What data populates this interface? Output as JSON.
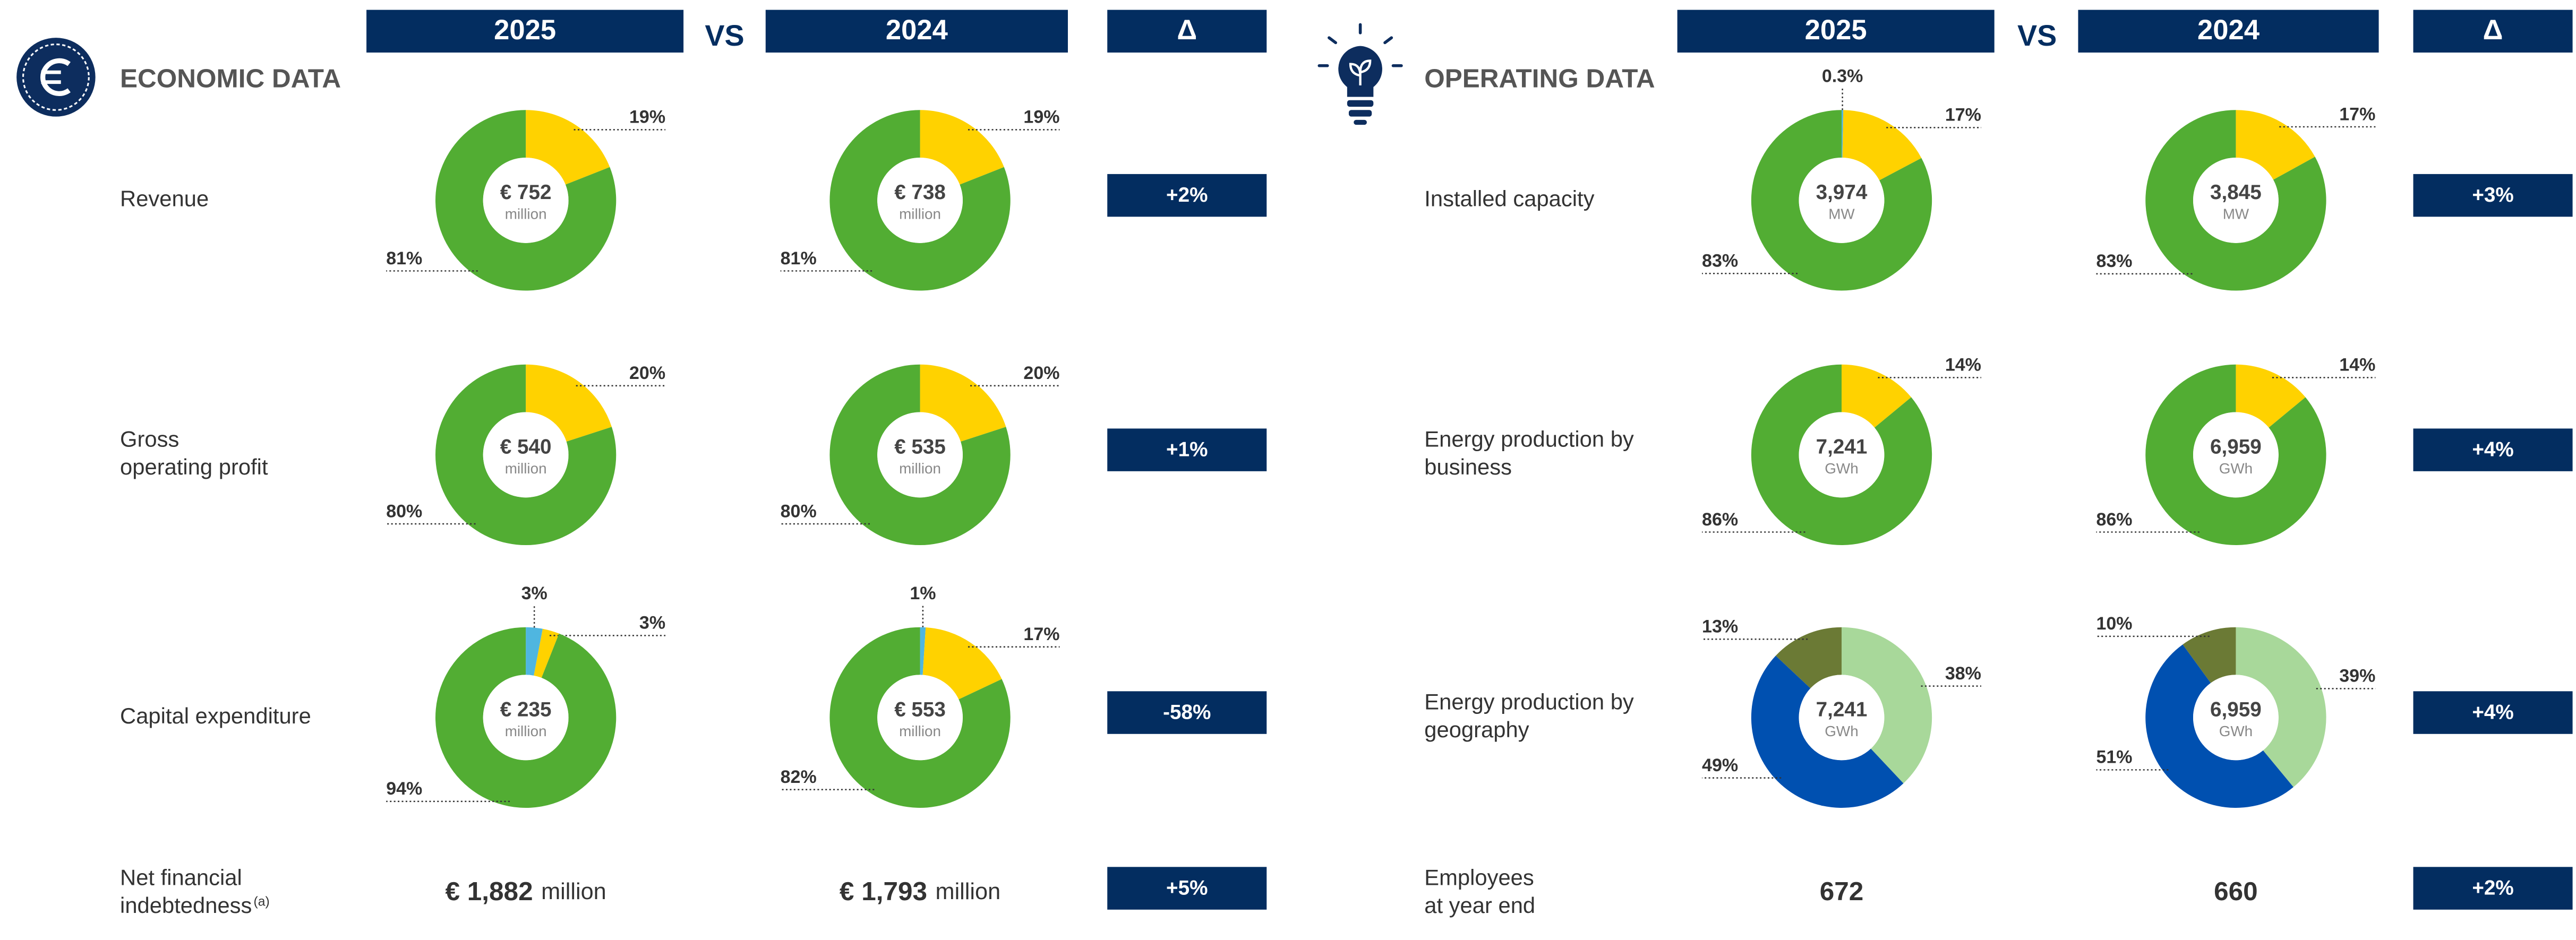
{
  "sections": [
    {
      "title": "ECONOMIC DATA",
      "header": {
        "current": "2025",
        "vs": "VS",
        "previous": "2024",
        "delta": "Δ"
      },
      "rows": [
        {
          "label": [
            "Revenue"
          ],
          "charts": [
            {
              "type": "donut",
              "values": [
                19,
                81
              ],
              "value_labels": [
                "19%",
                "81%"
              ],
              "colors": [
                "#ffd200",
                "#52ad33"
              ],
              "center_value": "€ 752",
              "center_unit": "million"
            },
            {
              "type": "donut",
              "values": [
                19,
                81
              ],
              "value_labels": [
                "19%",
                "81%"
              ],
              "colors": [
                "#ffd200",
                "#52ad33"
              ],
              "center_value": "€ 738",
              "center_unit": "million"
            }
          ],
          "delta": "+2%"
        },
        {
          "label": [
            "Gross",
            "operating profit"
          ],
          "charts": [
            {
              "type": "donut",
              "values": [
                20,
                80
              ],
              "value_labels": [
                "20%",
                "80%"
              ],
              "colors": [
                "#ffd200",
                "#52ad33"
              ],
              "center_value": "€ 540",
              "center_unit": "million"
            },
            {
              "type": "donut",
              "values": [
                20,
                80
              ],
              "value_labels": [
                "20%",
                "80%"
              ],
              "colors": [
                "#ffd200",
                "#52ad33"
              ],
              "center_value": "€ 535",
              "center_unit": "million"
            }
          ],
          "delta": "+1%"
        },
        {
          "label": [
            "Capital expenditure"
          ],
          "charts": [
            {
              "type": "donut",
              "values": [
                3,
                3,
                94
              ],
              "value_labels": [
                "3%",
                "3%",
                "94%"
              ],
              "colors": [
                "#4fb6e0",
                "#ffd200",
                "#52ad33"
              ],
              "center_value": "€ 235",
              "center_unit": "million"
            },
            {
              "type": "donut",
              "values": [
                1,
                17,
                82
              ],
              "value_labels": [
                "1%",
                "17%",
                "82%"
              ],
              "colors": [
                "#4fb6e0",
                "#ffd200",
                "#52ad33"
              ],
              "center_value": "€ 553",
              "center_unit": "million"
            }
          ],
          "delta": "-58%"
        },
        {
          "label": [
            "Net financial",
            "indebtedness"
          ],
          "note": "(a)",
          "figures": [
            {
              "value": "€ 1,882",
              "unit": "million"
            },
            {
              "value": "€ 1,793",
              "unit": "million"
            }
          ],
          "delta": "+5%"
        }
      ]
    },
    {
      "title": "OPERATING DATA",
      "header": {
        "current": "2025",
        "vs": "VS",
        "previous": "2024",
        "delta": "Δ"
      },
      "rows": [
        {
          "label": [
            "Installed capacity"
          ],
          "charts": [
            {
              "type": "donut",
              "values": [
                0.3,
                17,
                83
              ],
              "value_labels": [
                "0.3%",
                "17%",
                "83%"
              ],
              "colors": [
                "#4fb6e0",
                "#ffd200",
                "#52ad33"
              ],
              "center_value": "3,974",
              "center_unit": "MW"
            },
            {
              "type": "donut",
              "values": [
                17,
                83
              ],
              "value_labels": [
                "17%",
                "83%"
              ],
              "colors": [
                "#ffd200",
                "#52ad33"
              ],
              "center_value": "3,845",
              "center_unit": "MW"
            }
          ],
          "delta": "+3%"
        },
        {
          "label": [
            "Energy production by",
            "business"
          ],
          "charts": [
            {
              "type": "donut",
              "values": [
                14,
                86
              ],
              "value_labels": [
                "14%",
                "86%"
              ],
              "colors": [
                "#ffd200",
                "#52ad33"
              ],
              "center_value": "7,241",
              "center_unit": "GWh"
            },
            {
              "type": "donut",
              "values": [
                14,
                86
              ],
              "value_labels": [
                "14%",
                "86%"
              ],
              "colors": [
                "#ffd200",
                "#52ad33"
              ],
              "center_value": "6,959",
              "center_unit": "GWh"
            }
          ],
          "delta": "+4%"
        },
        {
          "label": [
            "Energy production by",
            "geography"
          ],
          "charts": [
            {
              "type": "donut",
              "values": [
                38,
                49,
                13
              ],
              "value_labels": [
                "38%",
                "49%",
                "13%"
              ],
              "colors": [
                "#a8d89a",
                "#0050b0",
                "#6b7a35"
              ],
              "center_value": "7,241",
              "center_unit": "GWh"
            },
            {
              "type": "donut",
              "values": [
                39,
                51,
                10
              ],
              "value_labels": [
                "39%",
                "51%",
                "10%"
              ],
              "colors": [
                "#a8d89a",
                "#0050b0",
                "#6b7a35"
              ],
              "center_value": "6,959",
              "center_unit": "GWh"
            }
          ],
          "delta": "+4%"
        },
        {
          "label": [
            "Employees",
            "at year end"
          ],
          "figures": [
            {
              "value": "672"
            },
            {
              "value": "660"
            }
          ],
          "delta": "+2%"
        }
      ]
    }
  ]
}
